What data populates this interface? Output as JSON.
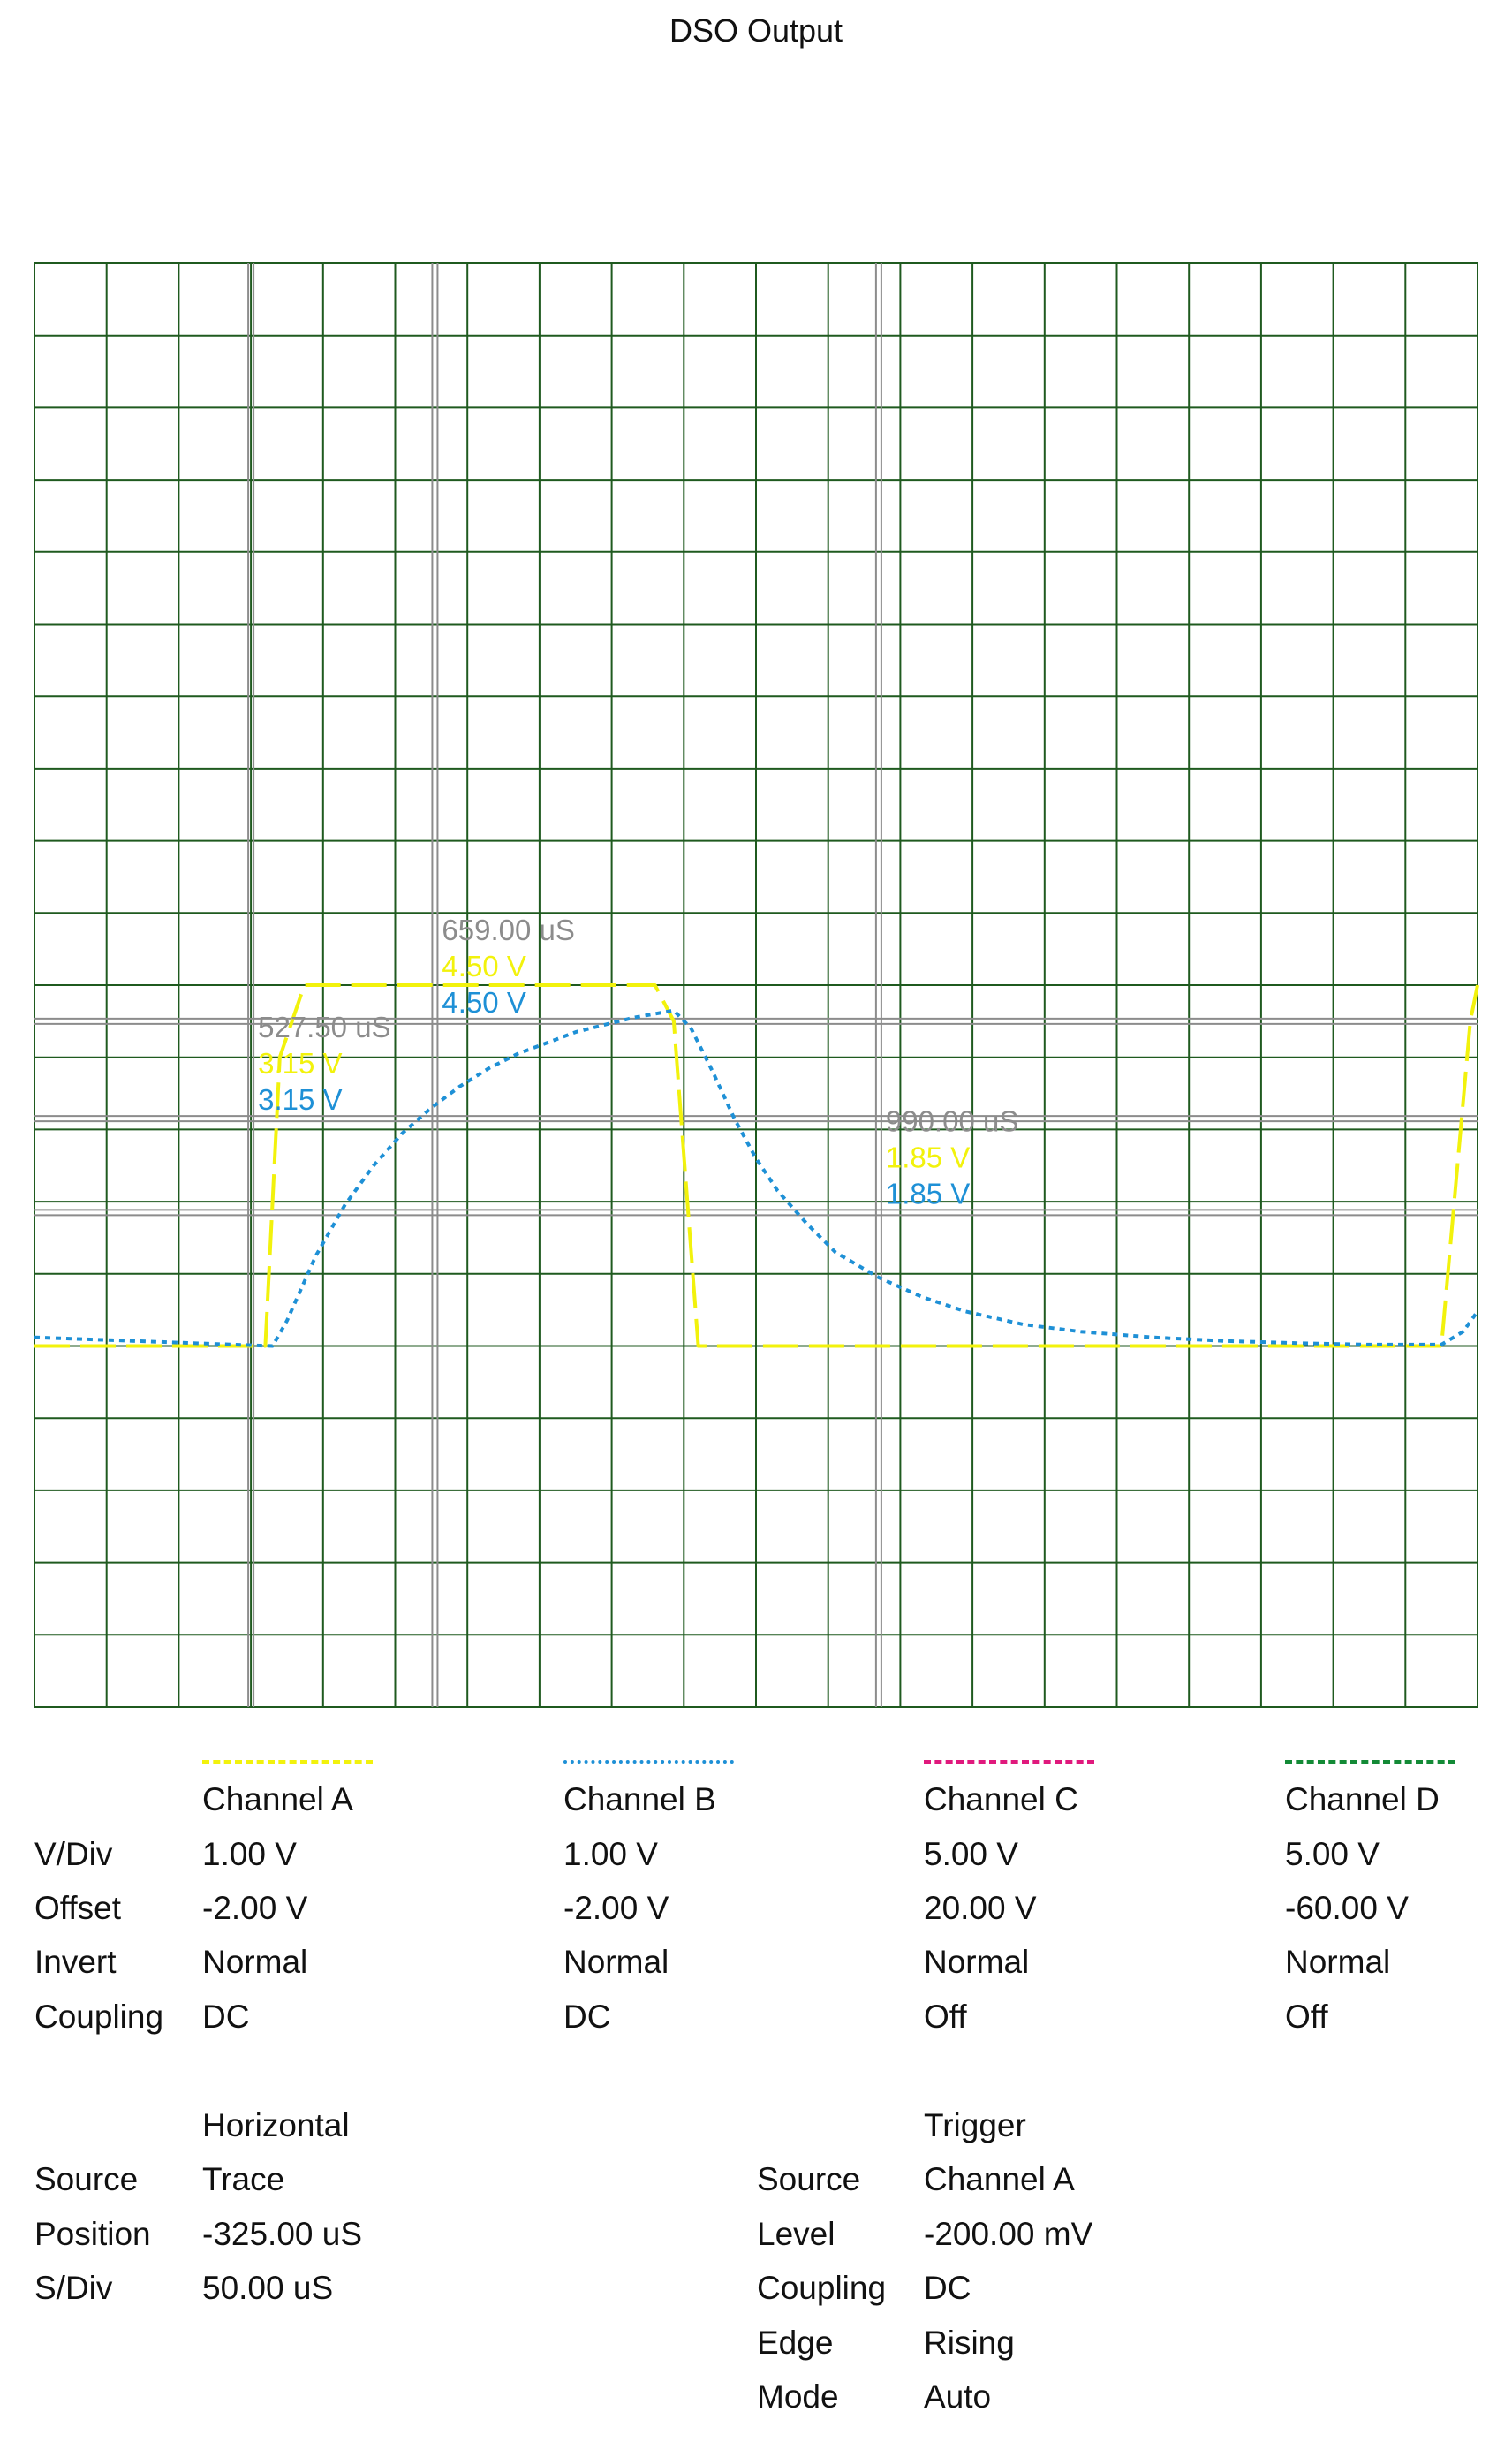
{
  "title": "DSO Output",
  "chart_data": {
    "type": "line",
    "title": "DSO Output",
    "grid": true,
    "time_unit": "uS",
    "h_divisions": 20,
    "v_divisions": 20,
    "time_range_us": [
      -325,
      675
    ],
    "volts_range": [
      -5,
      15
    ],
    "series": [
      {
        "name": "Channel A",
        "color": "#f2f20c",
        "dash": "dashed",
        "x_us": [
          -325,
          -165,
          -155,
          -138,
          105,
          118,
          135,
          235,
          650,
          670,
          675
        ],
        "y_v": [
          0,
          0,
          4.0,
          5.0,
          5.0,
          4.5,
          0,
          0,
          0,
          4.5,
          5.0
        ]
      },
      {
        "name": "Channel B",
        "color": "#1e90d6",
        "dash": "dotted",
        "x_us": [
          -325,
          -160,
          -150,
          -130,
          -110,
          -90,
          -70,
          -50,
          -30,
          -10,
          10,
          30,
          50,
          70,
          90,
          110,
          118,
          130,
          145,
          160,
          175,
          190,
          210,
          230,
          260,
          290,
          320,
          360,
          400,
          450,
          500,
          550,
          600,
          650,
          665,
          675
        ],
        "y_v": [
          0.12,
          0,
          0.35,
          1.25,
          1.95,
          2.5,
          2.95,
          3.3,
          3.6,
          3.85,
          4.05,
          4.2,
          4.35,
          4.45,
          4.55,
          4.62,
          4.65,
          4.4,
          3.8,
          3.15,
          2.6,
          2.15,
          1.7,
          1.3,
          0.95,
          0.68,
          0.48,
          0.3,
          0.2,
          0.12,
          0.07,
          0.04,
          0.02,
          0.02,
          0.2,
          0.48
        ]
      }
    ],
    "cursors": [
      {
        "time": "527.50 uS",
        "a": "3.15 V",
        "b": "3.15 V",
        "x_us": -175,
        "y_v": 3.15
      },
      {
        "time": "659.00 uS",
        "a": "4.50 V",
        "b": "4.50 V",
        "x_us": -47.5,
        "y_v": 4.5
      },
      {
        "time": "990.00 uS",
        "a": "1.85 V",
        "b": "1.85 V",
        "x_us": 260,
        "y_v": 1.85
      }
    ]
  },
  "channels": {
    "header_labels": [
      "V/Div",
      "Offset",
      "Invert",
      "Coupling"
    ],
    "items": [
      {
        "name": "Channel A",
        "color": "#f2f20c",
        "vdiv": "1.00 V",
        "offset": "-2.00 V",
        "invert": "Normal",
        "coupling": "DC"
      },
      {
        "name": "Channel B",
        "color": "#1e90d6",
        "vdiv": "1.00 V",
        "offset": "-2.00 V",
        "invert": "Normal",
        "coupling": "DC"
      },
      {
        "name": "Channel C",
        "color": "#e0197d",
        "vdiv": "5.00 V",
        "offset": "20.00 V",
        "invert": "Normal",
        "coupling": "Off"
      },
      {
        "name": "Channel D",
        "color": "#138a36",
        "vdiv": "5.00 V",
        "offset": "-60.00 V",
        "invert": "Normal",
        "coupling": "Off"
      }
    ]
  },
  "horizontal": {
    "title": "Horizontal",
    "labels": {
      "source": "Source",
      "position": "Position",
      "sdiv": "S/Div"
    },
    "source": "Trace",
    "position": "-325.00 uS",
    "sdiv": "50.00 uS"
  },
  "trigger": {
    "title": "Trigger",
    "labels": {
      "source": "Source",
      "level": "Level",
      "coupling": "Coupling",
      "edge": "Edge",
      "mode": "Mode"
    },
    "source": "Channel A",
    "level": "-200.00 mV",
    "coupling": "DC",
    "edge": "Rising",
    "mode": "Auto"
  }
}
